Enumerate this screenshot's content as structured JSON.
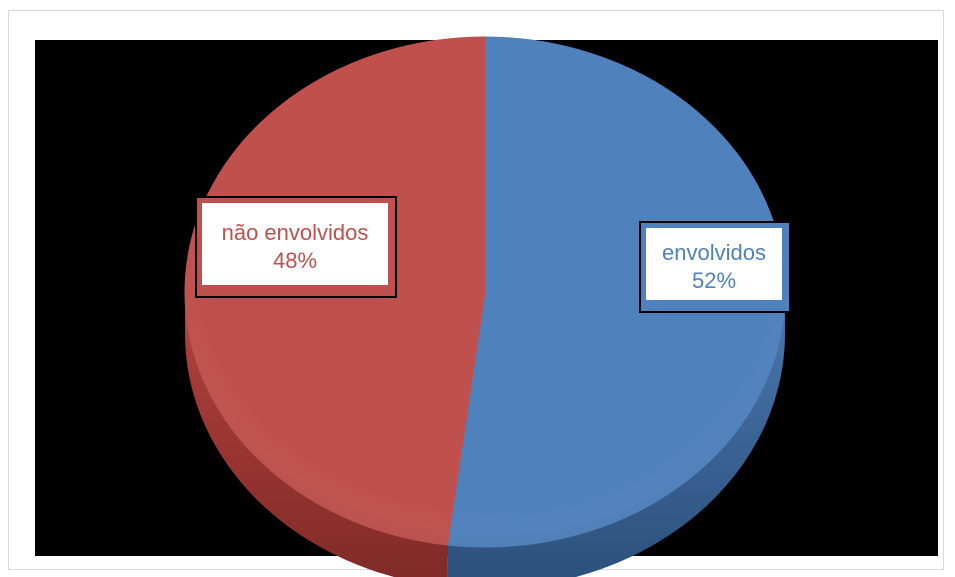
{
  "chart_data": {
    "type": "pie",
    "style": "3d",
    "title": "",
    "slices": [
      {
        "name": "envolvidos",
        "value": 52,
        "label": "52%",
        "color": "#4f81bd"
      },
      {
        "name": "não envolvidos",
        "value": 48,
        "label": "48%",
        "color": "#c0504d"
      }
    ],
    "background": "#000000",
    "label_colors": [
      "#4f81bd",
      "#c0504d"
    ]
  }
}
